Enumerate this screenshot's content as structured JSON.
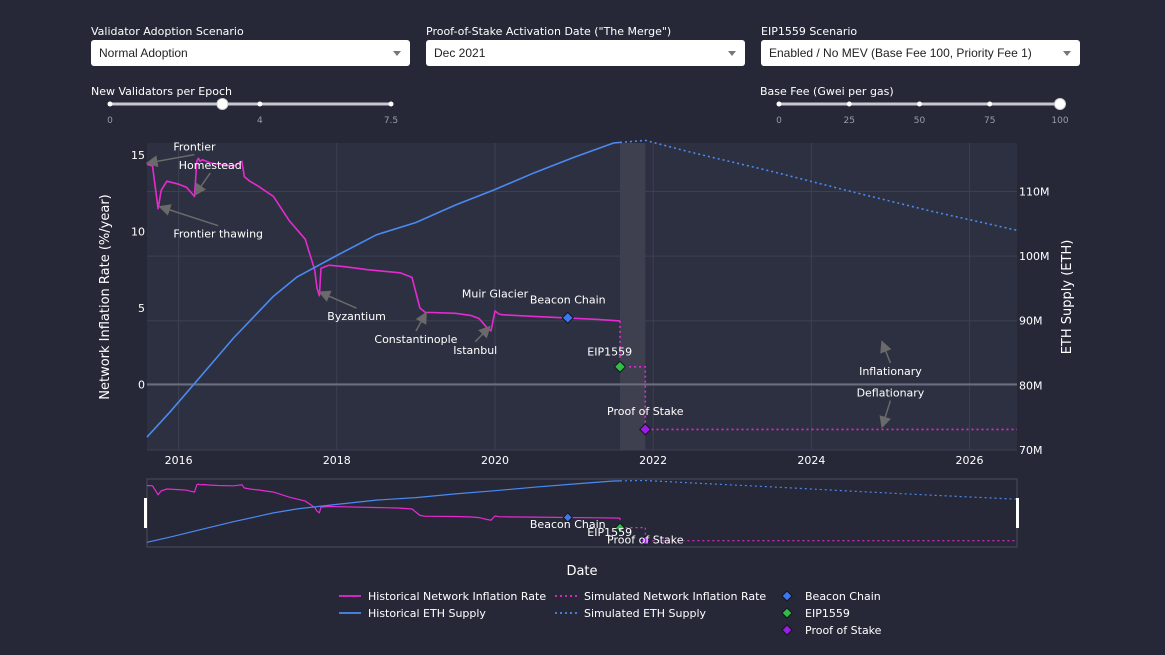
{
  "controls": {
    "validator_label": "Validator Adoption Scenario",
    "validator_value": "Normal Adoption",
    "merge_label": "Proof-of-Stake Activation Date (\"The Merge\")",
    "merge_value": "Dec 2021",
    "eip_label": "EIP1559 Scenario",
    "eip_value": "Enabled / No MEV (Base Fee 100, Priority Fee 1)",
    "validators_slider": {
      "label": "New Validators per Epoch",
      "ticks": [
        "0",
        "4",
        "7.5"
      ],
      "tick_values": [
        0,
        4,
        7.5
      ],
      "min": 0,
      "max": 7.5,
      "value": 3
    },
    "basefee_slider": {
      "label": "Base Fee (Gwei per gas)",
      "ticks": [
        "0",
        "25",
        "50",
        "75",
        "100"
      ],
      "tick_values": [
        0,
        25,
        50,
        75,
        100
      ],
      "min": 0,
      "max": 100,
      "value": 100
    }
  },
  "chart_data": {
    "type": "line",
    "title": "",
    "xlabel": "Date",
    "ylabel": "Network Inflation Rate (%/year)",
    "y2label": "ETH Supply (ETH)",
    "xlim": [
      2015.6,
      2026.6
    ],
    "ylim": [
      -4.3,
      15.8
    ],
    "y2lim": [
      70,
      117.5
    ],
    "x_ticks": [
      2016,
      2018,
      2020,
      2022,
      2024,
      2026
    ],
    "x_tick_labels": [
      "2016",
      "2018",
      "2020",
      "2022",
      "2024",
      "2026"
    ],
    "y_ticks": [
      0,
      5,
      10,
      15
    ],
    "y_tick_labels": [
      "0",
      "5",
      "10",
      "15"
    ],
    "y2_ticks": [
      70,
      80,
      90,
      100,
      110
    ],
    "y2_tick_labels": [
      "70M",
      "80M",
      "90M",
      "100M",
      "110M"
    ],
    "shaded_region": [
      2021.58,
      2021.9
    ],
    "series": [
      {
        "name": "Historical Network Inflation Rate",
        "axis": "y",
        "style": "solid",
        "color": "#e52bd0",
        "x": [
          2015.6,
          2015.67,
          2015.74,
          2015.78,
          2015.85,
          2016.0,
          2016.1,
          2016.15,
          2016.2,
          2016.23,
          2016.25,
          2016.27,
          2016.3,
          2016.4,
          2016.5,
          2016.7,
          2016.8,
          2016.83,
          2016.9,
          2017.0,
          2017.2,
          2017.4,
          2017.6,
          2017.72,
          2017.75,
          2017.78,
          2017.8,
          2017.9,
          2018.1,
          2018.4,
          2018.6,
          2018.8,
          2018.95,
          2019.05,
          2019.12,
          2019.2,
          2019.5,
          2019.7,
          2019.8,
          2019.85,
          2019.9,
          2019.95,
          2020.0,
          2020.05,
          2020.1,
          2020.5,
          2020.9,
          2021.3,
          2021.58
        ],
        "y": [
          14.4,
          14.3,
          11.5,
          12.7,
          13.3,
          13.1,
          12.9,
          12.6,
          12.3,
          14.6,
          14.8,
          14.6,
          14.7,
          14.5,
          14.4,
          14.3,
          14.6,
          13.6,
          13.3,
          13.0,
          12.3,
          10.7,
          9.5,
          7.5,
          6.3,
          5.8,
          7.6,
          7.8,
          7.7,
          7.5,
          7.4,
          7.3,
          7.0,
          5.0,
          4.7,
          4.7,
          4.65,
          4.5,
          4.3,
          4.0,
          3.7,
          3.5,
          4.8,
          4.6,
          4.55,
          4.45,
          4.35,
          4.25,
          4.15
        ]
      },
      {
        "name": "Simulated Network Inflation Rate",
        "axis": "y",
        "style": "dotted",
        "color": "#e52bd0",
        "x": [
          2021.58,
          2021.58,
          2021.9,
          2021.9,
          2026.6
        ],
        "y": [
          4.15,
          1.15,
          1.15,
          -2.95,
          -2.95
        ]
      },
      {
        "name": "Historical ETH Supply",
        "axis": "y2",
        "style": "solid",
        "color": "#4a8af0",
        "x": [
          2015.6,
          2015.9,
          2016.3,
          2016.7,
          2017.2,
          2017.5,
          2018.0,
          2018.5,
          2019.0,
          2019.5,
          2020.0,
          2020.5,
          2021.0,
          2021.5,
          2021.58
        ],
        "y": [
          72.0,
          76.0,
          81.7,
          87.4,
          93.8,
          96.8,
          100.1,
          103.3,
          105.2,
          107.9,
          110.3,
          112.9,
          115.3,
          117.5,
          117.6
        ]
      },
      {
        "name": "Simulated ETH Supply",
        "axis": "y2",
        "style": "dotted",
        "color": "#4a8af0",
        "x": [
          2021.58,
          2021.9,
          2022.5,
          2023.5,
          2024.5,
          2025.5,
          2026.6
        ],
        "y": [
          117.6,
          117.9,
          116.0,
          113.1,
          110.0,
          107.0,
          104.0
        ]
      }
    ],
    "markers": [
      {
        "name": "Beacon Chain",
        "x": 2020.92,
        "y": 4.35,
        "color": "#3b78f0"
      },
      {
        "name": "EIP1559",
        "x": 2021.58,
        "y": 1.15,
        "color": "#2ec045"
      },
      {
        "name": "Proof of Stake",
        "x": 2021.9,
        "y": -2.95,
        "color": "#9a1ee6"
      }
    ],
    "annotations": [
      {
        "text": "Frontier",
        "tx": 2016.2,
        "ty": 15.3,
        "ax": 2015.62,
        "ay": 14.5
      },
      {
        "text": "Homestead",
        "tx": 2016.4,
        "ty": 14.1,
        "ax": 2016.22,
        "ay": 12.5
      },
      {
        "text": "Frontier thawing",
        "tx": 2016.5,
        "ty": 9.6,
        "ax": 2015.78,
        "ay": 11.6
      },
      {
        "text": "Byzantium",
        "tx": 2018.25,
        "ty": 4.2,
        "ax": 2017.8,
        "ay": 6.0
      },
      {
        "text": "Constantinople",
        "tx": 2019.0,
        "ty": 2.7,
        "ax": 2019.12,
        "ay": 4.6
      },
      {
        "text": "Istanbul",
        "tx": 2019.75,
        "ty": 2.0,
        "ax": 2019.92,
        "ay": 3.7
      },
      {
        "text": "Muir Glacier",
        "tx": 2020.0,
        "ty": 5.7,
        "ax": "",
        "ay": ""
      },
      {
        "text": "Beacon Chain",
        "tx": 2020.92,
        "ty": 5.3,
        "ax": "",
        "ay": ""
      },
      {
        "text": "EIP1559",
        "tx": 2021.45,
        "ty": 1.9,
        "ax": "",
        "ay": ""
      },
      {
        "text": "Proof of Stake",
        "tx": 2021.9,
        "ty": -2.0,
        "ax": "",
        "ay": ""
      },
      {
        "text": "Inflationary",
        "tx": 2025.0,
        "ty": 0.6,
        "ax": 2024.9,
        "ay": 2.7
      },
      {
        "text": "Deflationary",
        "tx": 2025.0,
        "ty": -0.8,
        "ax": 2024.9,
        "ay": -2.7
      }
    ],
    "range_slider_labels": [
      {
        "text": "Beacon Chain",
        "x": 2020.92,
        "y": 1.0
      },
      {
        "text": "EIP1559",
        "x": 2021.45,
        "y": -1.5
      },
      {
        "text": "Proof of Stake",
        "x": 2021.9,
        "y": -3.8
      }
    ],
    "legend": {
      "placement": "bottom-center",
      "entries": [
        {
          "name": "Historical Network Inflation Rate",
          "kind": "line",
          "style": "solid",
          "color": "#e52bd0"
        },
        {
          "name": "Historical ETH Supply",
          "kind": "line",
          "style": "solid",
          "color": "#4a8af0"
        },
        {
          "name": "Simulated Network Inflation Rate",
          "kind": "line",
          "style": "dotted",
          "color": "#e52bd0"
        },
        {
          "name": "Simulated ETH Supply",
          "kind": "line",
          "style": "dotted",
          "color": "#4a8af0"
        },
        {
          "name": "Beacon Chain",
          "kind": "marker",
          "color": "#3b78f0"
        },
        {
          "name": "EIP1559",
          "kind": "marker",
          "color": "#2ec045"
        },
        {
          "name": "Proof of Stake",
          "kind": "marker",
          "color": "#9a1ee6"
        }
      ]
    }
  }
}
